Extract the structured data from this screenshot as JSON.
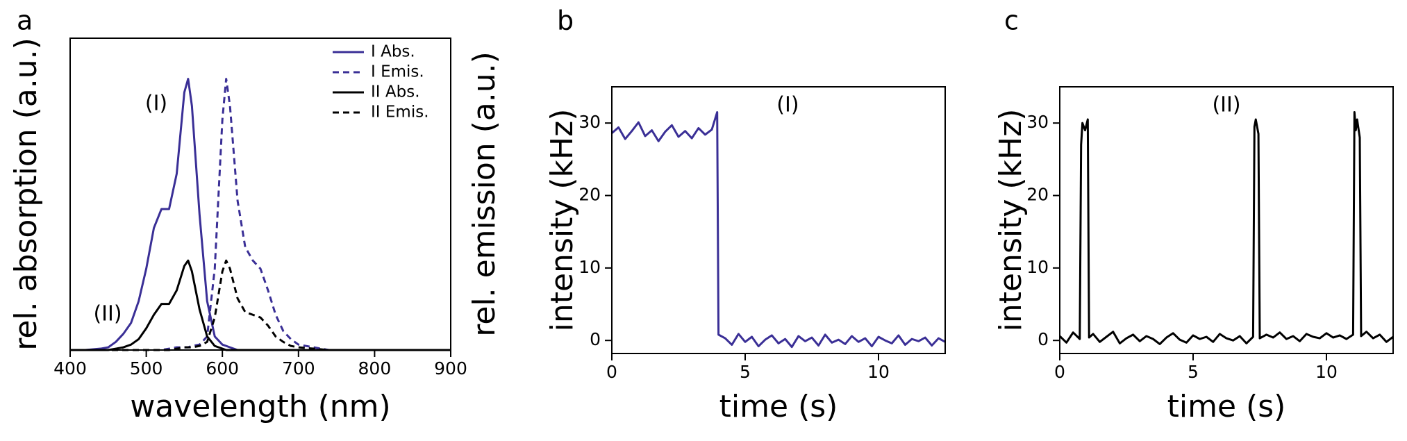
{
  "chart_data": [
    {
      "type": "line",
      "panel": "a",
      "xlabel": "wavelength (nm)",
      "ylabel": "rel. absorption (a.u.)",
      "y2label": "rel. emission (a.u.)",
      "xlim": [
        400,
        900
      ],
      "xticks": [
        400,
        500,
        600,
        700,
        800,
        900
      ],
      "ylim": [
        0,
        1.15
      ],
      "x": [
        400,
        420,
        440,
        450,
        460,
        470,
        480,
        490,
        500,
        510,
        520,
        530,
        540,
        550,
        555,
        560,
        570,
        580,
        590,
        600,
        605,
        610,
        620,
        630,
        640,
        650,
        660,
        670,
        680,
        690,
        700,
        720,
        740,
        760,
        800,
        850,
        900
      ],
      "series": [
        {
          "name": "I Abs.",
          "color": "#3a2f96",
          "dash": false,
          "values": [
            0,
            0,
            0.005,
            0.01,
            0.03,
            0.06,
            0.1,
            0.18,
            0.3,
            0.45,
            0.52,
            0.52,
            0.65,
            0.95,
            1.0,
            0.9,
            0.5,
            0.18,
            0.05,
            0.02,
            0.015,
            0.01,
            0,
            0,
            0,
            0,
            0,
            0,
            0,
            0,
            0,
            0,
            0,
            0,
            0,
            0,
            0
          ]
        },
        {
          "name": "I Emis.",
          "color": "#3a2f96",
          "dash": true,
          "values": [
            0,
            0,
            0,
            0,
            0,
            0,
            0,
            0,
            0,
            0,
            0,
            0.005,
            0.01,
            0.01,
            0.01,
            0.015,
            0.02,
            0.05,
            0.3,
            0.85,
            1.0,
            0.9,
            0.55,
            0.38,
            0.33,
            0.3,
            0.22,
            0.13,
            0.07,
            0.04,
            0.02,
            0.01,
            0,
            0,
            0,
            0,
            0
          ]
        },
        {
          "name": "II Abs.",
          "color": "#000000",
          "dash": false,
          "values": [
            0,
            0,
            0,
            0,
            0.005,
            0.01,
            0.02,
            0.04,
            0.08,
            0.13,
            0.17,
            0.17,
            0.22,
            0.31,
            0.33,
            0.29,
            0.15,
            0.05,
            0.015,
            0.005,
            0,
            0,
            0,
            0,
            0,
            0,
            0,
            0,
            0,
            0,
            0,
            0,
            0,
            0,
            0,
            0,
            0
          ]
        },
        {
          "name": "II  Emis.",
          "color": "#000000",
          "dash": true,
          "values": [
            0,
            0,
            0,
            0,
            0,
            0,
            0,
            0,
            0,
            0,
            0,
            0,
            0.005,
            0.01,
            0.01,
            0.01,
            0.015,
            0.03,
            0.12,
            0.29,
            0.33,
            0.3,
            0.19,
            0.14,
            0.13,
            0.12,
            0.09,
            0.05,
            0.03,
            0.015,
            0.01,
            0.005,
            0,
            0,
            0,
            0,
            0
          ]
        }
      ],
      "annotations": [
        {
          "text": "(I)",
          "color": "#3a2f96"
        },
        {
          "text": "(II)",
          "color": "#000000"
        }
      ]
    },
    {
      "type": "line",
      "panel": "b",
      "xlabel": "time (s)",
      "ylabel": "intensity (kHz)",
      "xlim": [
        0,
        12.5
      ],
      "xticks": [
        0,
        5,
        10
      ],
      "ylim": [
        -1.8,
        35
      ],
      "yticks": [
        0,
        10,
        20,
        30
      ],
      "x": [
        0,
        0.25,
        0.5,
        0.75,
        1,
        1.25,
        1.5,
        1.75,
        2,
        2.25,
        2.5,
        2.75,
        3,
        3.25,
        3.5,
        3.75,
        3.95,
        4.0,
        4.25,
        4.5,
        4.75,
        5,
        5.25,
        5.5,
        5.75,
        6,
        6.25,
        6.5,
        6.75,
        7,
        7.25,
        7.5,
        7.75,
        8,
        8.25,
        8.5,
        8.75,
        9,
        9.25,
        9.5,
        9.75,
        10,
        10.25,
        10.5,
        10.75,
        11,
        11.25,
        11.5,
        11.75,
        12,
        12.25,
        12.5
      ],
      "series": [
        {
          "name": "(I)",
          "color": "#3a2f96",
          "values": [
            28.6,
            29.4,
            27.8,
            28.9,
            30.1,
            28.2,
            29.0,
            27.5,
            28.8,
            29.7,
            28.1,
            28.9,
            27.9,
            29.3,
            28.4,
            29.1,
            31.5,
            0.8,
            0.3,
            -0.6,
            0.9,
            -0.2,
            0.5,
            -0.8,
            0.1,
            0.7,
            -0.4,
            0.2,
            -0.9,
            0.6,
            -0.1,
            0.4,
            -0.7,
            0.8,
            -0.3,
            0.1,
            -0.5,
            0.6,
            -0.2,
            0.3,
            -0.8,
            0.5,
            0.0,
            -0.4,
            0.7,
            -0.6,
            0.2,
            -0.1,
            0.4,
            -0.7,
            0.3,
            -0.2
          ]
        }
      ]
    },
    {
      "type": "line",
      "panel": "c",
      "xlabel": "time (s)",
      "ylabel": "intensity (kHz)",
      "xlim": [
        0,
        12.5
      ],
      "xticks": [
        0,
        5,
        10
      ],
      "ylim": [
        -1.8,
        35
      ],
      "yticks": [
        0,
        10,
        20,
        30
      ],
      "x": [
        0,
        0.25,
        0.5,
        0.75,
        0.8,
        0.85,
        0.95,
        1.05,
        1.1,
        1.25,
        1.5,
        1.75,
        2,
        2.25,
        2.5,
        2.75,
        3,
        3.25,
        3.5,
        3.75,
        4,
        4.25,
        4.5,
        4.75,
        5,
        5.25,
        5.5,
        5.75,
        6,
        6.25,
        6.5,
        6.75,
        7,
        7.25,
        7.3,
        7.35,
        7.45,
        7.5,
        7.75,
        8,
        8.25,
        8.5,
        8.75,
        9,
        9.25,
        9.5,
        9.75,
        10,
        10.25,
        10.5,
        10.75,
        11,
        11.05,
        11.1,
        11.15,
        11.25,
        11.3,
        11.5,
        11.75,
        12,
        12.25,
        12.5
      ],
      "series": [
        {
          "name": "(II)",
          "color": "#000000",
          "values": [
            0.6,
            -0.3,
            1.1,
            0.2,
            27,
            30,
            29,
            30.5,
            0.4,
            0.9,
            -0.2,
            0.5,
            1.2,
            -0.4,
            0.3,
            0.8,
            -0.1,
            0.6,
            0.2,
            -0.5,
            0.4,
            1.0,
            0.1,
            -0.3,
            0.7,
            0.2,
            0.5,
            -0.2,
            0.9,
            0.3,
            0.0,
            0.6,
            -0.4,
            0.5,
            29.5,
            30.5,
            28.5,
            0.3,
            0.8,
            0.4,
            1.1,
            0.2,
            0.6,
            -0.1,
            0.9,
            0.5,
            0.3,
            1.0,
            0.4,
            0.7,
            0.2,
            0.8,
            31.5,
            29,
            30.5,
            28,
            0.6,
            1.2,
            0.3,
            0.8,
            -0.2,
            0.5
          ]
        }
      ]
    }
  ]
}
